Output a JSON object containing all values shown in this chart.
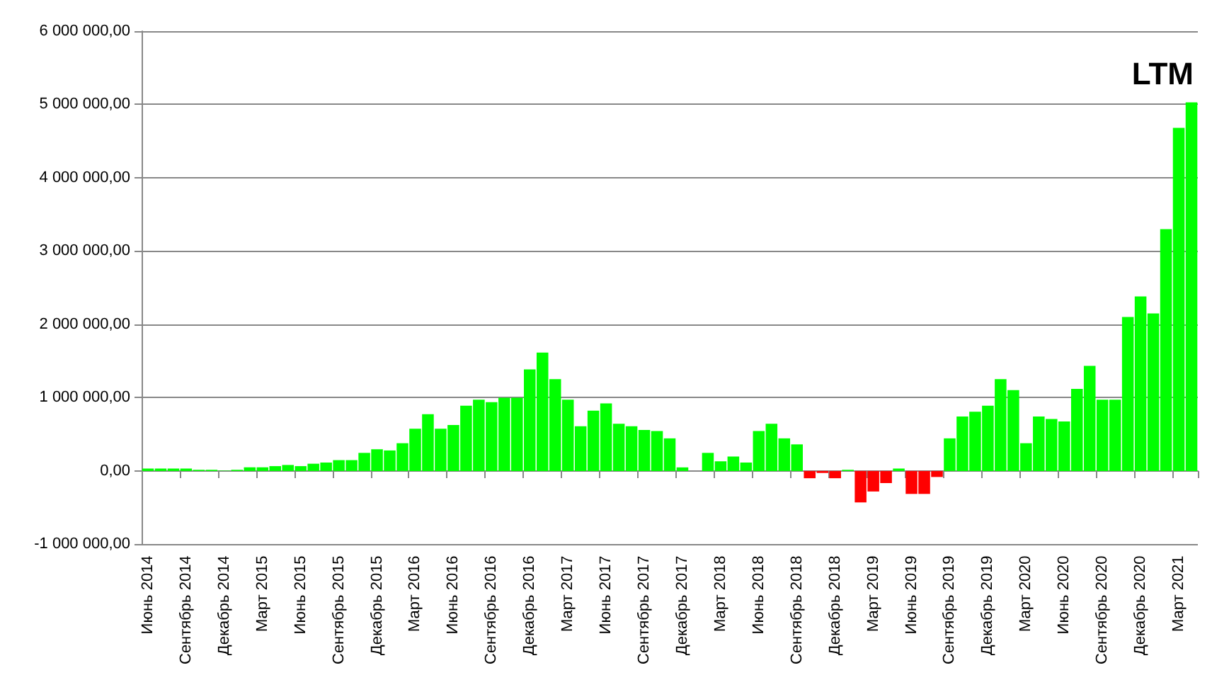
{
  "chart_data": {
    "type": "bar",
    "title": "LTM",
    "categories": [
      "Июнь 2014",
      null,
      null,
      "Сентябрь 2014",
      null,
      null,
      "Декабрь 2014",
      null,
      null,
      "Март 2015",
      null,
      null,
      "Июнь 2015",
      null,
      null,
      "Сентябрь 2015",
      null,
      null,
      "Декабрь 2015",
      null,
      null,
      "Март 2016",
      null,
      null,
      "Июнь 2016",
      null,
      null,
      "Сентябрь 2016",
      null,
      null,
      "Декабрь 2016",
      null,
      null,
      "Март 2017",
      null,
      null,
      "Июнь 2017",
      null,
      null,
      "Сентябрь 2017",
      null,
      null,
      "Декабрь 2017",
      null,
      null,
      "Март 2018",
      null,
      null,
      "Июнь 2018",
      null,
      null,
      "Сентябрь 2018",
      null,
      null,
      "Декабрь 2018",
      null,
      null,
      "Март 2019",
      null,
      null,
      "Июнь 2019",
      null,
      null,
      "Сентябрь 2019",
      null,
      null,
      "Декабрь 2019",
      null,
      null,
      "Март 2020",
      null,
      null,
      "Июнь 2020",
      null,
      null,
      "Сентябрь 2020",
      null,
      null,
      "Декабрь 2020",
      null,
      null,
      "Март 2021",
      null
    ],
    "values": [
      33000,
      33000,
      33000,
      33000,
      16000,
      16000,
      5000,
      16000,
      50000,
      50000,
      66000,
      82000,
      66000,
      99000,
      115000,
      148000,
      148000,
      247000,
      297000,
      280000,
      379000,
      577000,
      775000,
      577000,
      626000,
      890000,
      973000,
      940000,
      1000000,
      1000000,
      1385000,
      1615000,
      1253000,
      973000,
      610000,
      824000,
      923000,
      643000,
      610000,
      560000,
      544000,
      445000,
      49000,
      0,
      247000,
      132000,
      198000,
      115000,
      544000,
      643000,
      445000,
      363000,
      -99000,
      -27000,
      -99000,
      16000,
      -429000,
      -280000,
      -165000,
      33000,
      -313000,
      -313000,
      -82000,
      445000,
      742000,
      808000,
      890000,
      1253000,
      1104000,
      379000,
      742000,
      709000,
      676000,
      1121000,
      1434000,
      973000,
      973000,
      2100000,
      2380000,
      2150000,
      3300000,
      4680000,
      5030000
    ],
    "colors": [
      "#00ff00",
      "#00ff00",
      "#00ff00",
      "#00ff00",
      "#00ff00",
      "#00ff00",
      "#00ff00",
      "#00ff00",
      "#00ff00",
      "#00ff00",
      "#00ff00",
      "#00ff00",
      "#00ff00",
      "#00ff00",
      "#00ff00",
      "#00ff00",
      "#00ff00",
      "#00ff00",
      "#00ff00",
      "#00ff00",
      "#00ff00",
      "#00ff00",
      "#00ff00",
      "#00ff00",
      "#00ff00",
      "#00ff00",
      "#00ff00",
      "#00ff00",
      "#00ff00",
      "#00ff00",
      "#00ff00",
      "#00ff00",
      "#00ff00",
      "#00ff00",
      "#00ff00",
      "#00ff00",
      "#00ff00",
      "#00ff00",
      "#00ff00",
      "#00ff00",
      "#00ff00",
      "#00ff00",
      "#00ff00",
      "#00ff00",
      "#00ff00",
      "#00ff00",
      "#00ff00",
      "#00ff00",
      "#00ff00",
      "#00ff00",
      "#00ff00",
      "#00ff00",
      "#ff0000",
      "#ff0000",
      "#ff0000",
      "#00ff00",
      "#ff0000",
      "#ff0000",
      "#ff0000",
      "#00ff00",
      "#ff0000",
      "#ff0000",
      "#ff0000",
      "#00ff00",
      "#00ff00",
      "#00ff00",
      "#00ff00",
      "#00ff00",
      "#00ff00",
      "#00ff00",
      "#00ff00",
      "#00ff00",
      "#00ff00",
      "#00ff00",
      "#00ff00",
      "#00ff00",
      "#00ff00",
      "#00ff00",
      "#00ff00",
      "#00ff00",
      "#00ff00",
      "#00ff00",
      "#00ff00"
    ],
    "ylim": [
      -1000000,
      6000000
    ],
    "yticks": [
      {
        "value": -1000000,
        "label": "-1 000 000,00"
      },
      {
        "value": 0,
        "label": "0,00"
      },
      {
        "value": 1000000,
        "label": "1 000 000,00"
      },
      {
        "value": 2000000,
        "label": "2 000 000,00"
      },
      {
        "value": 3000000,
        "label": "3 000 000,00"
      },
      {
        "value": 4000000,
        "label": "4 000 000,00"
      },
      {
        "value": 5000000,
        "label": "5 000 000,00"
      },
      {
        "value": 6000000,
        "label": "6 000 000,00"
      }
    ],
    "grid": "y"
  }
}
